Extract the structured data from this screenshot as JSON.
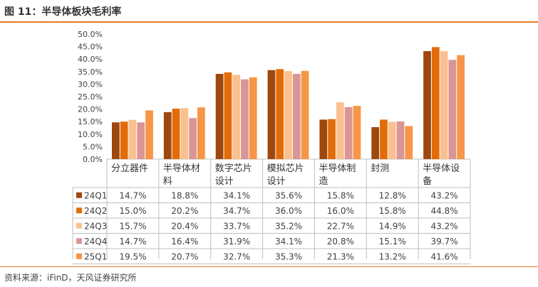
{
  "title": "图 11：半导体板块毛利率",
  "source": "资料来源：iFinD，天风证券研究所",
  "chart_data": {
    "type": "bar",
    "title": "",
    "xlabel": "",
    "ylabel": "",
    "ylim": [
      0,
      50
    ],
    "yticks": [
      "0.0%",
      "5.0%",
      "10.0%",
      "15.0%",
      "20.0%",
      "25.0%",
      "30.0%",
      "35.0%",
      "40.0%",
      "45.0%",
      "50.0%"
    ],
    "grid": false,
    "legend": "data-table-left",
    "categories": [
      "分立器件",
      "半导体材料",
      "数字芯片设计",
      "模拟芯片设计",
      "半导体制造",
      "封测",
      "半导体设备"
    ],
    "category_lines": [
      [
        "分立器件"
      ],
      [
        "半导体材",
        "料"
      ],
      [
        "数字芯片",
        "设计"
      ],
      [
        "模拟芯片",
        "设计"
      ],
      [
        "半导体制",
        "造"
      ],
      [
        "封测"
      ],
      [
        "半导体设",
        "备"
      ]
    ],
    "series": [
      {
        "name": "24Q1",
        "color": "#9e480e",
        "values": [
          14.7,
          18.8,
          34.1,
          35.6,
          15.8,
          12.8,
          43.2
        ],
        "labels": [
          "14.7%",
          "18.8%",
          "34.1%",
          "35.6%",
          "15.8%",
          "12.8%",
          "43.2%"
        ]
      },
      {
        "name": "24Q2",
        "color": "#e36c0a",
        "values": [
          15.0,
          20.2,
          34.7,
          36.0,
          16.0,
          15.8,
          44.8
        ],
        "labels": [
          "15.0%",
          "20.2%",
          "34.7%",
          "36.0%",
          "16.0%",
          "15.8%",
          "44.8%"
        ]
      },
      {
        "name": "24Q3",
        "color": "#fac090",
        "values": [
          15.7,
          20.4,
          33.7,
          35.2,
          22.7,
          14.9,
          43.2
        ],
        "labels": [
          "15.7%",
          "20.4%",
          "33.7%",
          "35.2%",
          "22.7%",
          "14.9%",
          "43.2%"
        ]
      },
      {
        "name": "24Q4",
        "color": "#d99694",
        "values": [
          14.7,
          16.4,
          31.9,
          34.1,
          20.8,
          15.1,
          39.7
        ],
        "labels": [
          "14.7%",
          "16.4%",
          "31.9%",
          "34.1%",
          "20.8%",
          "15.1%",
          "39.7%"
        ]
      },
      {
        "name": "25Q1",
        "color": "#f79646",
        "values": [
          19.5,
          20.7,
          32.7,
          35.3,
          21.3,
          13.2,
          41.6
        ],
        "labels": [
          "19.5%",
          "20.7%",
          "32.7%",
          "35.3%",
          "21.3%",
          "13.2%",
          "41.6%"
        ]
      }
    ]
  }
}
